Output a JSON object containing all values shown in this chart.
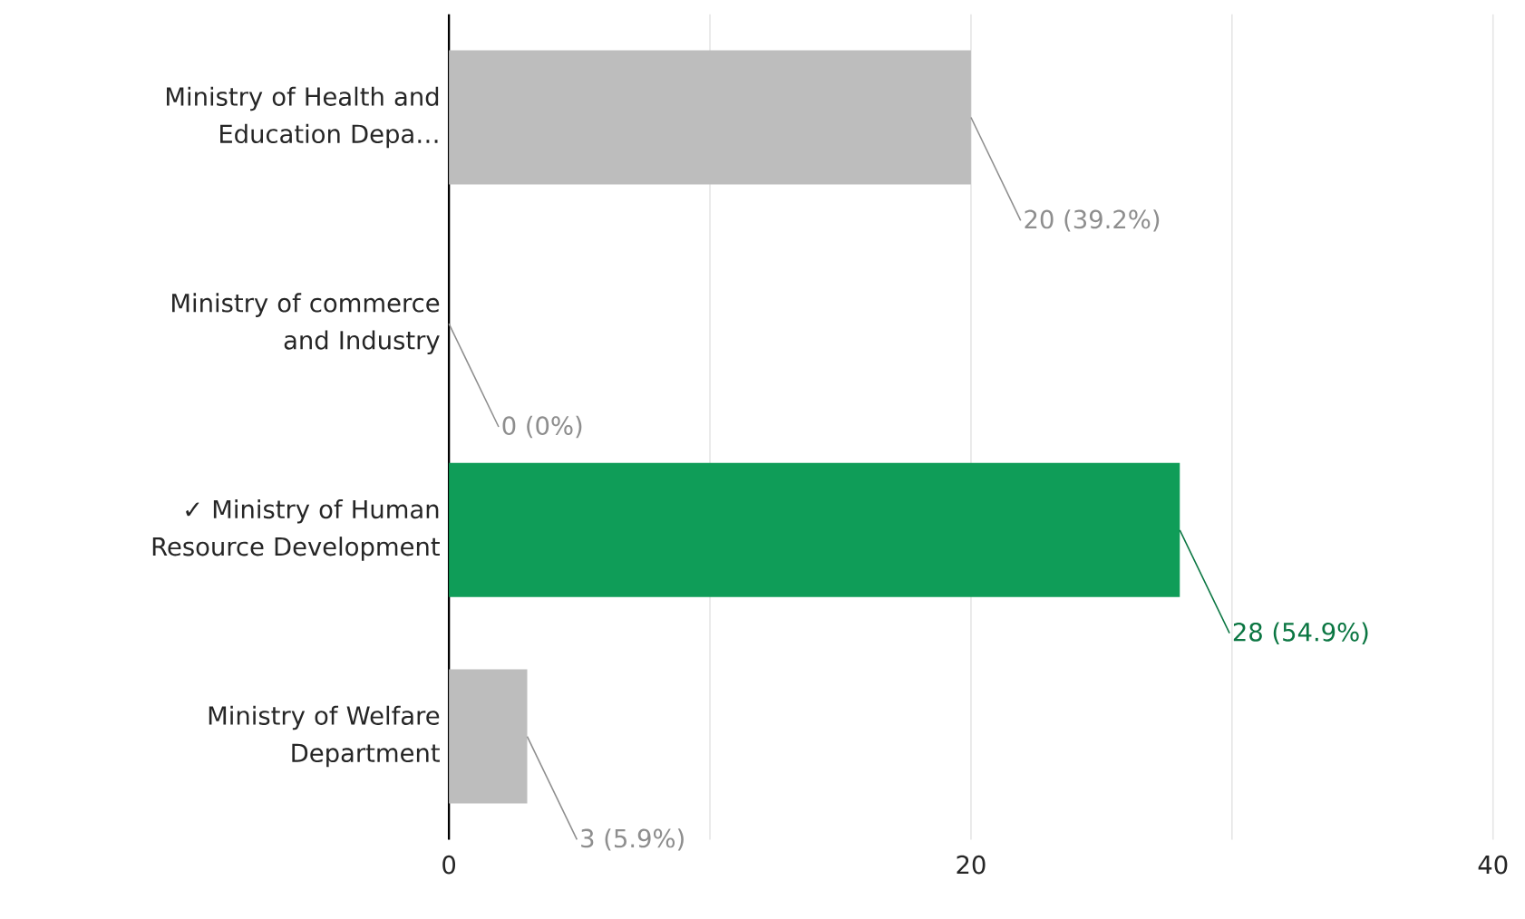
{
  "chart_data": {
    "type": "bar",
    "orientation": "horizontal",
    "categories": [
      "Ministry of Health and Education Depa…",
      "Ministry of commerce and Industry",
      "✓ Ministry of Human Resource Development",
      "Ministry of Welfare Department"
    ],
    "values": [
      20,
      0,
      28,
      3
    ],
    "colors": [
      "#bdbdbd",
      "#bdbdbd",
      "#0f9d58",
      "#bdbdbd"
    ],
    "value_labels": [
      "20 (39.2%)",
      "0 (0%)",
      "28 (54.9%)",
      "3 (5.9%)"
    ],
    "xlim": [
      0,
      40
    ],
    "xticks": [
      0,
      {
        "value": 10,
        "label": null
      },
      20,
      {
        "value": 30,
        "label": null
      },
      40
    ],
    "grid": "x"
  }
}
